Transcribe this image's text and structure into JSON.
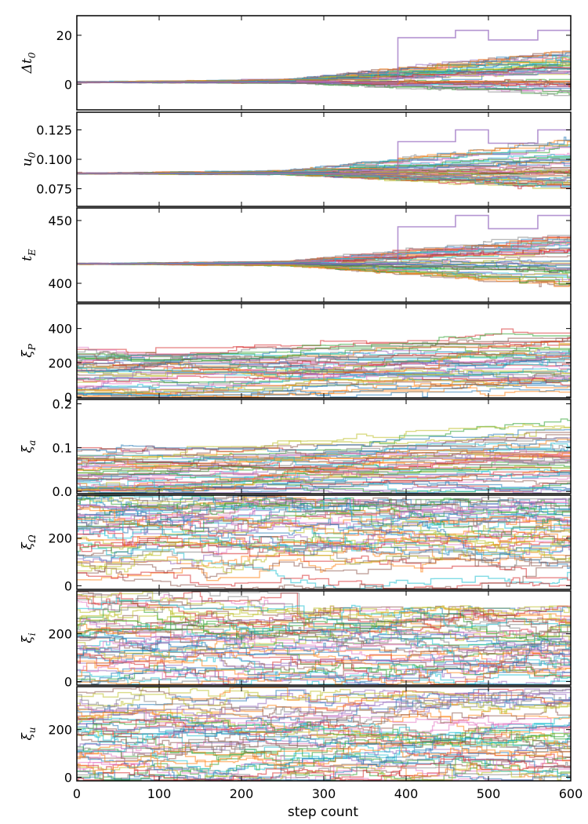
{
  "chart_data": {
    "type": "line",
    "chart_kind": "MCMC walker trace plot (stacked panels, shared x-axis)",
    "xlabel": "step count",
    "xlim": [
      0,
      600
    ],
    "xticks": [
      0,
      100,
      200,
      300,
      400,
      500,
      600
    ],
    "xtick_labels": [
      "0",
      "100",
      "200",
      "300",
      "400",
      "500",
      "600"
    ],
    "grid": false,
    "legend": "none",
    "palette": [
      "#1f77b4",
      "#ff7f0e",
      "#2ca02c",
      "#d62728",
      "#9467bd",
      "#8c564b",
      "#e377c2",
      "#7f7f7f",
      "#bcbd22",
      "#17becf"
    ],
    "panels": [
      {
        "ylabel_main": "Δt",
        "ylabel_sub": "0",
        "ylim": [
          -10.5,
          28
        ],
        "yticks": [
          0,
          20
        ],
        "ytick_labels": [
          "0",
          "20"
        ],
        "walker_description": "all walkers start near 0.8 and slowly diverge after ~250 steps, one walker jumps to ~20 around step 390-480",
        "start_value": 0.8,
        "final_spread_low": -8,
        "final_spread_high": 25,
        "diverge_step": 250,
        "outlier": {
          "steps": [
            390,
            500
          ],
          "values": [
            19,
            22
          ]
        }
      },
      {
        "ylabel_main": "u",
        "ylabel_sub": "0",
        "ylim": [
          0.06,
          0.14
        ],
        "yticks": [
          0.075,
          0.1,
          0.125
        ],
        "ytick_labels": [
          "0.075",
          "0.100",
          "0.125"
        ],
        "start_value": 0.088,
        "final_spread_low": 0.062,
        "final_spread_high": 0.137,
        "diverge_step": 250,
        "outlier": {
          "steps": [
            390,
            500
          ],
          "values": [
            0.115,
            0.125
          ]
        }
      },
      {
        "ylabel_main": "t",
        "ylabel_sub": "E",
        "ylim": [
          385,
          460
        ],
        "yticks": [
          400,
          450
        ],
        "ytick_labels": [
          "400",
          "450"
        ],
        "start_value": 415.5,
        "final_spread_low": 385,
        "final_spread_high": 457,
        "diverge_step": 250,
        "outlier": {
          "steps": [
            390,
            500
          ],
          "values": [
            445,
            454
          ]
        }
      },
      {
        "ylabel_main": "ξ",
        "ylabel_sub": "P",
        "ylim": [
          -5,
          545
        ],
        "yticks": [
          0,
          200,
          400
        ],
        "ytick_labels": [
          "0",
          "200",
          "400"
        ],
        "start_range": [
          10,
          300
        ],
        "final_spread_low": 10,
        "final_spread_high": 530,
        "grows": true
      },
      {
        "ylabel_main": "ξ",
        "ylabel_sub": "a",
        "ylim": [
          -0.005,
          0.21
        ],
        "yticks": [
          0.0,
          0.1,
          0.2
        ],
        "ytick_labels": [
          "0.0",
          "0.1",
          "0.2"
        ],
        "start_range": [
          0.0,
          0.1
        ],
        "final_spread_low": 0.0,
        "final_spread_high": 0.21,
        "grows": true
      },
      {
        "ylabel_main": "ξ",
        "ylabel_sub": "Ω",
        "ylim": [
          -15,
          380
        ],
        "yticks": [
          0,
          200
        ],
        "ytick_labels": [
          "0",
          "200"
        ],
        "start_range": [
          -10,
          370
        ],
        "final_spread_low": -10,
        "final_spread_high": 370,
        "grows": false
      },
      {
        "ylabel_main": "ξ",
        "ylabel_sub": "i",
        "ylim": [
          -15,
          380
        ],
        "yticks": [
          0,
          200
        ],
        "ytick_labels": [
          "0",
          "200"
        ],
        "start_range": [
          -10,
          370
        ],
        "final_spread_low": 0,
        "final_spread_high": 320,
        "grows": false
      },
      {
        "ylabel_main": "ξ",
        "ylabel_sub": "u",
        "ylim": [
          -15,
          380
        ],
        "yticks": [
          0,
          200
        ],
        "ytick_labels": [
          "0",
          "200"
        ],
        "start_range": [
          -10,
          370
        ],
        "final_spread_low": -10,
        "final_spread_high": 370,
        "grows": false
      }
    ]
  }
}
